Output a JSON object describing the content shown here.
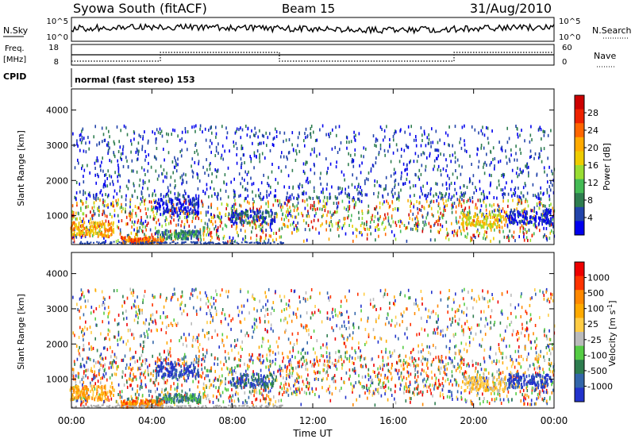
{
  "header": {
    "station": "Syowa South (fitACF)",
    "beam": "Beam 15",
    "date": "31/Aug/2010"
  },
  "top_panels": {
    "nsky_label": "N.Sky",
    "nsky_ticks": [
      "10^5",
      "10^0"
    ],
    "nsearch_label": "N.Search",
    "nsearch_ticks": [
      "10^5",
      "10^0"
    ],
    "freq_label": "Freq.",
    "freq_unit": "[MHz]",
    "freq_ticks": [
      "18",
      "8"
    ],
    "nave_label": "Nave",
    "nave_ticks": [
      "60",
      "0"
    ],
    "cpid_label": "CPID",
    "cpid_text": "normal (fast stereo) 153"
  },
  "chart_data": [
    {
      "type": "heatmap",
      "name": "power",
      "ylabel": "Slant Range [km]",
      "ylim": [
        180,
        4600
      ],
      "yticks": [
        "1000",
        "2000",
        "3000",
        "4000"
      ],
      "colorbar_label": "Power [dB]",
      "colorbar_ticks": [
        "28",
        "24",
        "20",
        "16",
        "12",
        "8",
        "4"
      ],
      "colors": [
        "#0000ee",
        "#2244aa",
        "#2e7d4f",
        "#44bb55",
        "#99dd33",
        "#eecc00",
        "#ffaa00",
        "#ff6600",
        "#ee2200",
        "#cc0000"
      ]
    },
    {
      "type": "heatmap",
      "name": "velocity",
      "ylabel": "Slant Range [km]",
      "ylim": [
        180,
        4600
      ],
      "yticks": [
        "1000",
        "2000",
        "3000",
        "4000"
      ],
      "colorbar_label": "Velocity [m s",
      "colorbar_unit_sup": "-1",
      "colorbar_ticks": [
        "1000",
        "500",
        "100",
        "25",
        "-25",
        "-100",
        "-500",
        "-1000"
      ],
      "colors": [
        "#2233cc",
        "#3366aa",
        "#2e7d4f",
        "#55cc44",
        "#bbbbbb",
        "#ffcc44",
        "#ffaa00",
        "#ff8800",
        "#ff3300",
        "#ee0000"
      ]
    }
  ],
  "time_axis": {
    "ticks": [
      "00:00",
      "04:00",
      "08:00",
      "12:00",
      "16:00",
      "20:00",
      "00:00"
    ],
    "label": "Time UT"
  }
}
